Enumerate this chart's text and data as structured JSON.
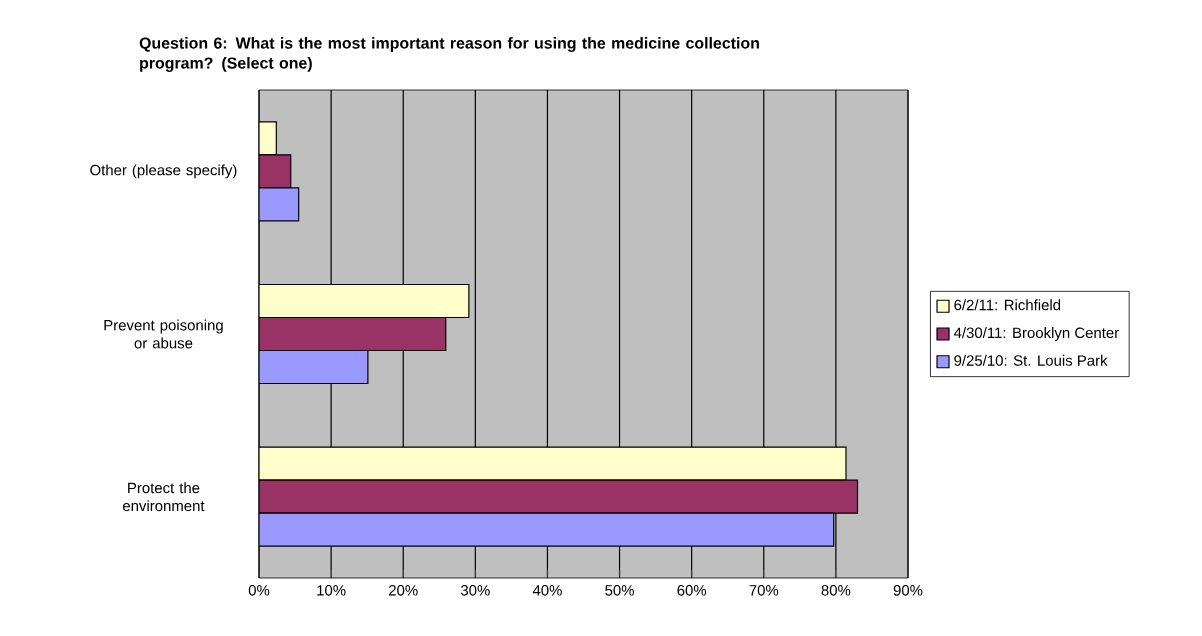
{
  "chart_data": {
    "type": "bar",
    "orientation": "horizontal",
    "title": "Question 6: What is the most important reason for using the medicine collection program? (Select one)",
    "categories": [
      "Other (please specify)",
      "Prevent poisoning or abuse",
      "Protect the environment"
    ],
    "series": [
      {
        "name": "6/2/11: Richfield",
        "color": "#ffffcc",
        "values": [
          2.4,
          29.1,
          81.4
        ]
      },
      {
        "name": "4/30/11: Brooklyn Center",
        "color": "#993366",
        "values": [
          4.4,
          25.9,
          83.0
        ]
      },
      {
        "name": "9/25/10: St. Louis Park",
        "color": "#9999ff",
        "values": [
          5.5,
          15.1,
          79.7
        ]
      }
    ],
    "xlim": [
      0,
      90
    ],
    "xticks": [
      {
        "value": 0,
        "label": "0%"
      },
      {
        "value": 10,
        "label": "10%"
      },
      {
        "value": 20,
        "label": "20%"
      },
      {
        "value": 30,
        "label": "30%"
      },
      {
        "value": 40,
        "label": "40%"
      },
      {
        "value": 50,
        "label": "50%"
      },
      {
        "value": 60,
        "label": "60%"
      },
      {
        "value": 70,
        "label": "70%"
      },
      {
        "value": 80,
        "label": "80%"
      },
      {
        "value": 90,
        "label": "90%"
      }
    ],
    "grid": "x",
    "legend": "right"
  }
}
